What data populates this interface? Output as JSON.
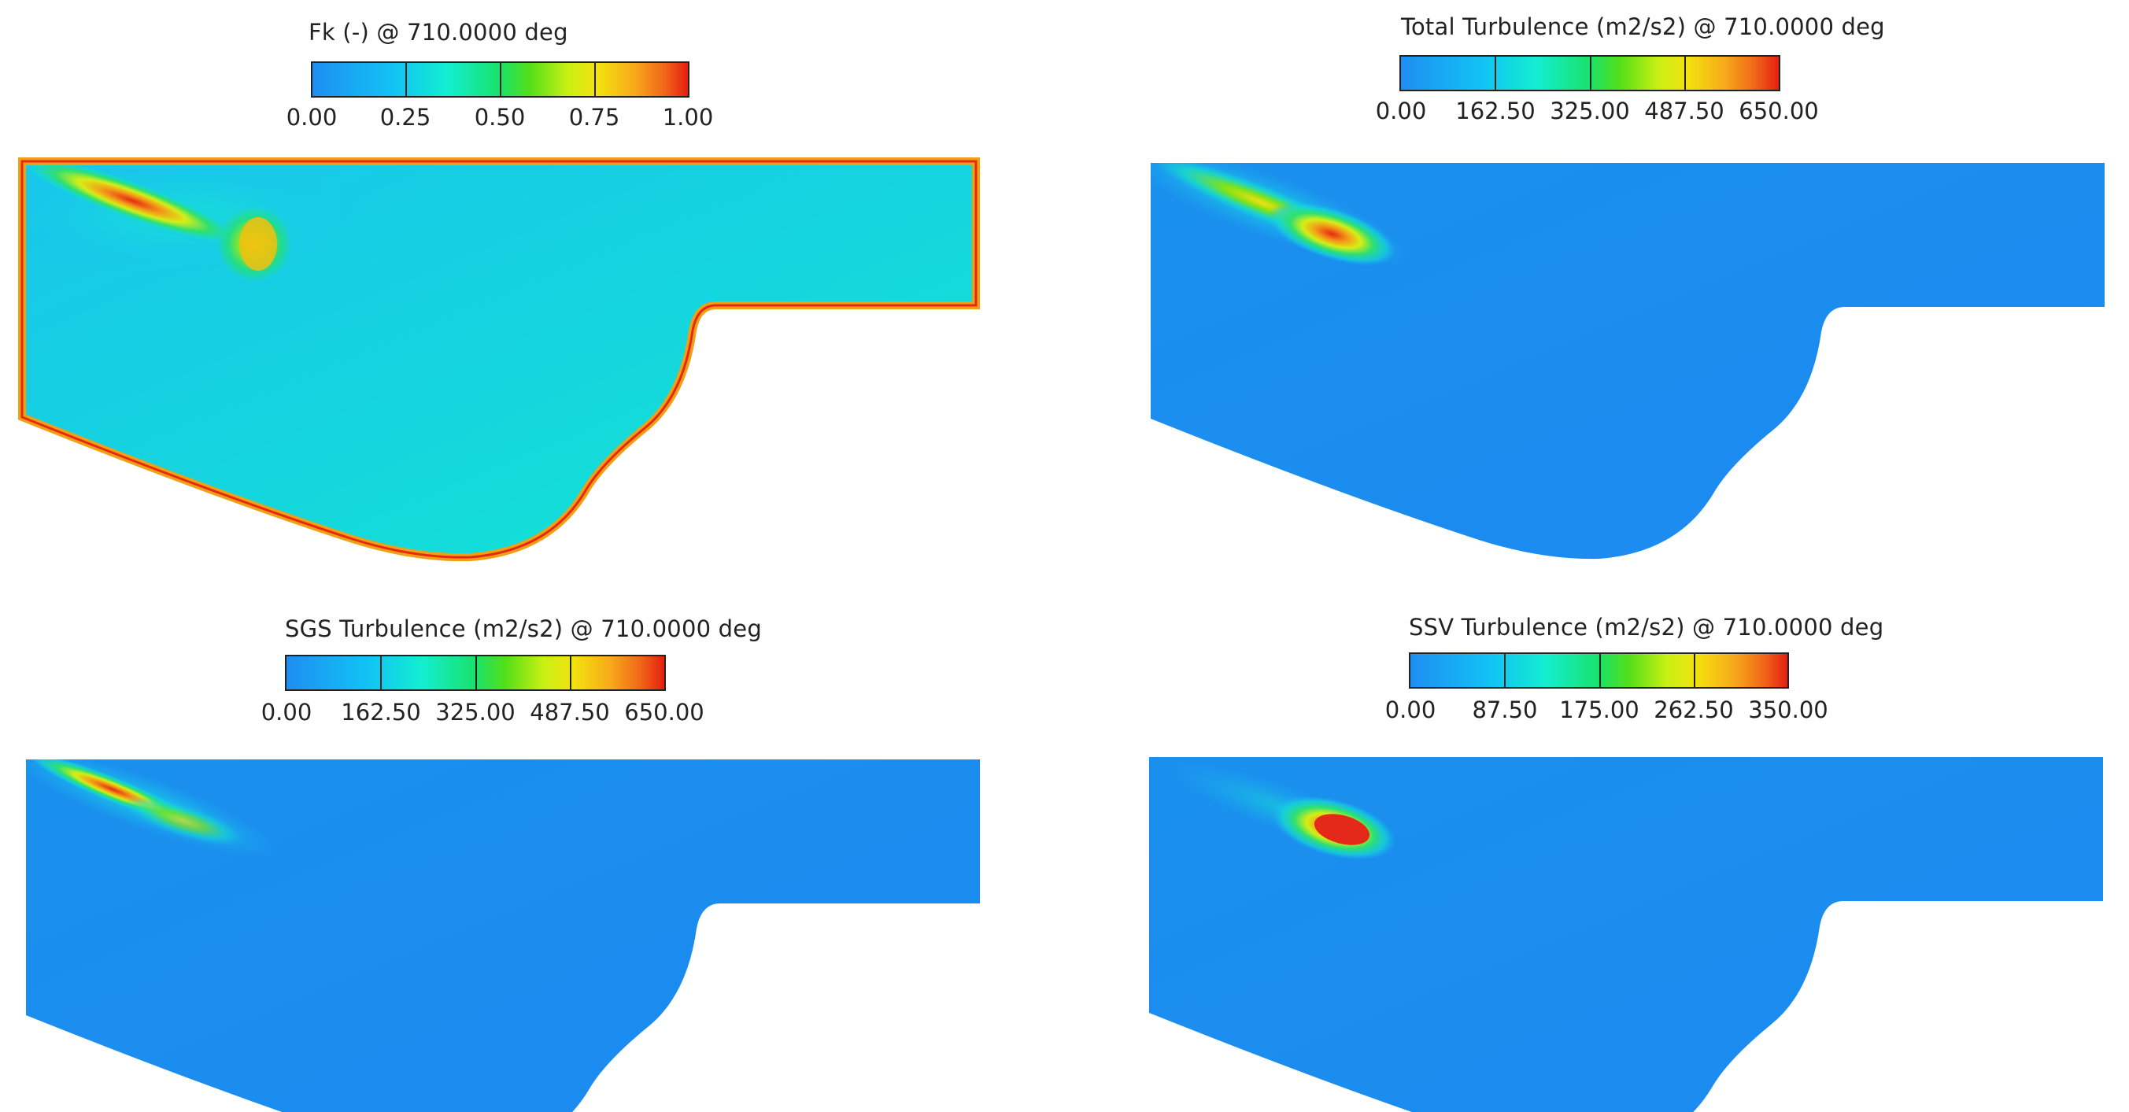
{
  "panels": [
    {
      "id": "fk",
      "title": "Fk  (-) @ 710.0000 deg",
      "ticks": [
        "0.00",
        "0.25",
        "0.50",
        "0.75",
        "1.00"
      ],
      "field": "fk"
    },
    {
      "id": "total",
      "title": "Total Turbulence (m2/s2) @ 710.0000 deg",
      "ticks": [
        "0.00",
        "162.50",
        "325.00",
        "487.50",
        "650.00"
      ],
      "field": "total"
    },
    {
      "id": "sgs",
      "title": "SGS Turbulence (m2/s2) @ 710.0000 deg",
      "ticks": [
        "0.00",
        "162.50",
        "325.00",
        "487.50",
        "650.00"
      ],
      "field": "sgs"
    },
    {
      "id": "ssv",
      "title": "SSV Turbulence (m2/s2) @ 710.0000 deg",
      "ticks": [
        "0.00",
        "87.50",
        "175.00",
        "262.50",
        "350.00"
      ],
      "field": "ssv"
    }
  ],
  "colors": {
    "field_base": "#1a8ef0",
    "fk_base": "#14d2e0",
    "wall_high": "#e62a10"
  }
}
